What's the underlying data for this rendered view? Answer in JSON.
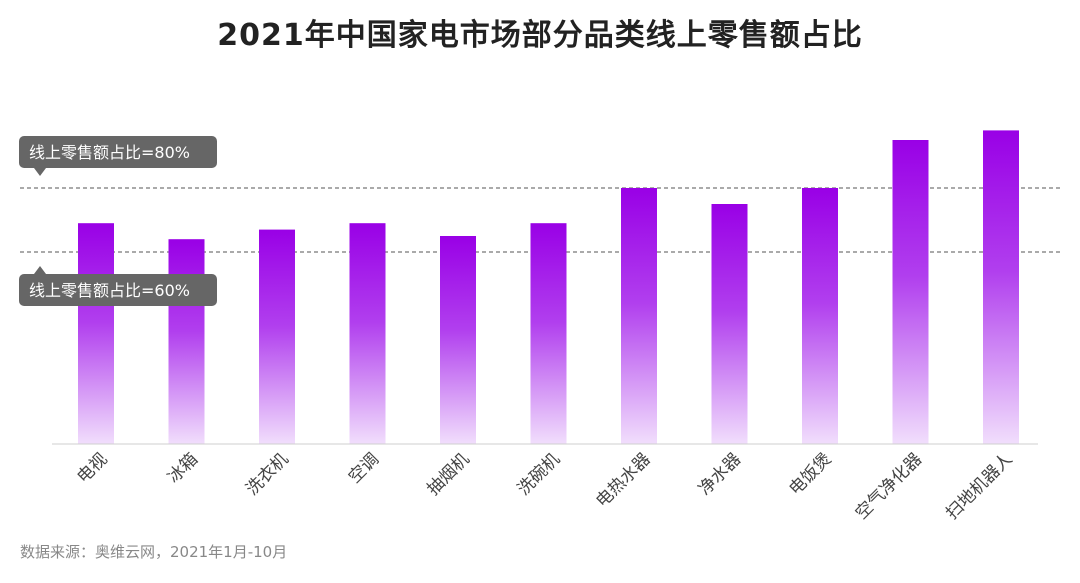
{
  "title": "2021年中国家电市场部分品类线上零售额占比",
  "source": "数据来源：奥维云网，2021年1月-10月",
  "colors": {
    "bar_top": "#9900e6",
    "bar_bottom": "#f1defc",
    "reference": "#555555",
    "tooltip_bg": "#666666"
  },
  "chart_data": {
    "type": "bar",
    "title": "2021年中国家电市场部分品类线上零售额占比",
    "categories": [
      "电视",
      "冰箱",
      "洗衣机",
      "空调",
      "抽烟机",
      "洗碗机",
      "电热水器",
      "净水器",
      "电饭煲",
      "空气净化器",
      "扫地机器人"
    ],
    "values": [
      69,
      64,
      67,
      69,
      65,
      69,
      80,
      75,
      80,
      95,
      98
    ],
    "unit": "%",
    "ylim": [
      0,
      100
    ],
    "grid": false,
    "reference_lines": [
      {
        "value": 80,
        "label": "线上零售额占比=80%"
      },
      {
        "value": 60,
        "label": "线上零售额占比=60%"
      }
    ]
  }
}
